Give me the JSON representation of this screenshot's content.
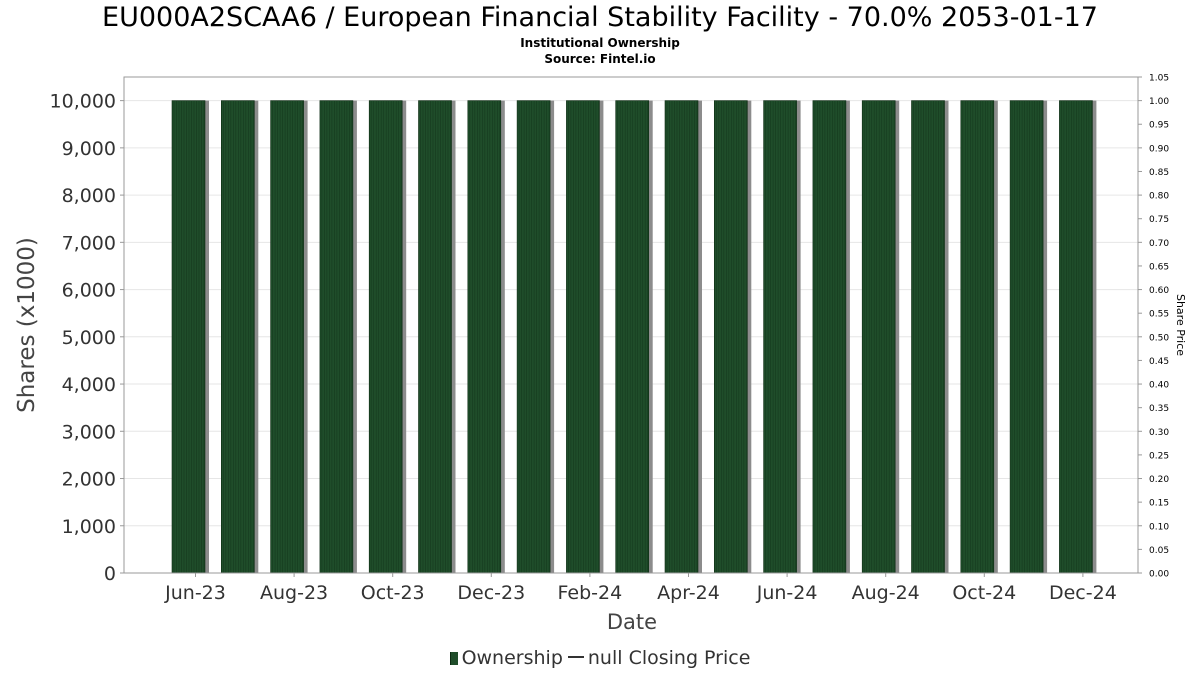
{
  "chart_data": {
    "type": "bar",
    "title": "EU000A2SCAA6 / European Financial Stability Facility - 70.0% 2053-01-17",
    "subtitle": [
      "Institutional Ownership",
      "Source: Fintel.io"
    ],
    "xlabel": "Date",
    "ylabel": "Shares (x1000)",
    "y2label": "Share Price",
    "ylim": [
      0,
      10500
    ],
    "y2lim": [
      0,
      1.05
    ],
    "yticks": [
      "0",
      "1,000",
      "2,000",
      "3,000",
      "4,000",
      "5,000",
      "6,000",
      "7,000",
      "8,000",
      "9,000",
      "10,000"
    ],
    "y2ticks": [
      "0.00",
      "0.05",
      "0.10",
      "0.15",
      "0.20",
      "0.25",
      "0.30",
      "0.35",
      "0.40",
      "0.45",
      "0.50",
      "0.55",
      "0.60",
      "0.65",
      "0.70",
      "0.75",
      "0.80",
      "0.85",
      "0.90",
      "0.95",
      "1.00",
      "1.05"
    ],
    "xticks": [
      "Jun-23",
      "Aug-23",
      "Oct-23",
      "Dec-23",
      "Feb-24",
      "Apr-24",
      "Jun-24",
      "Aug-24",
      "Oct-24",
      "Dec-24"
    ],
    "series": [
      {
        "name": "Ownership",
        "color": "#1f4d2a",
        "values": [
          10000,
          10000,
          10000,
          10000,
          10000,
          10000,
          10000,
          10000,
          10000,
          10000,
          10000,
          10000,
          10000,
          10000,
          10000,
          10000,
          10000,
          10000,
          10000
        ]
      }
    ],
    "grid": true,
    "legend_position": "bottom"
  },
  "legend": {
    "ownership_label": "Ownership",
    "price_label": "null Closing Price"
  }
}
